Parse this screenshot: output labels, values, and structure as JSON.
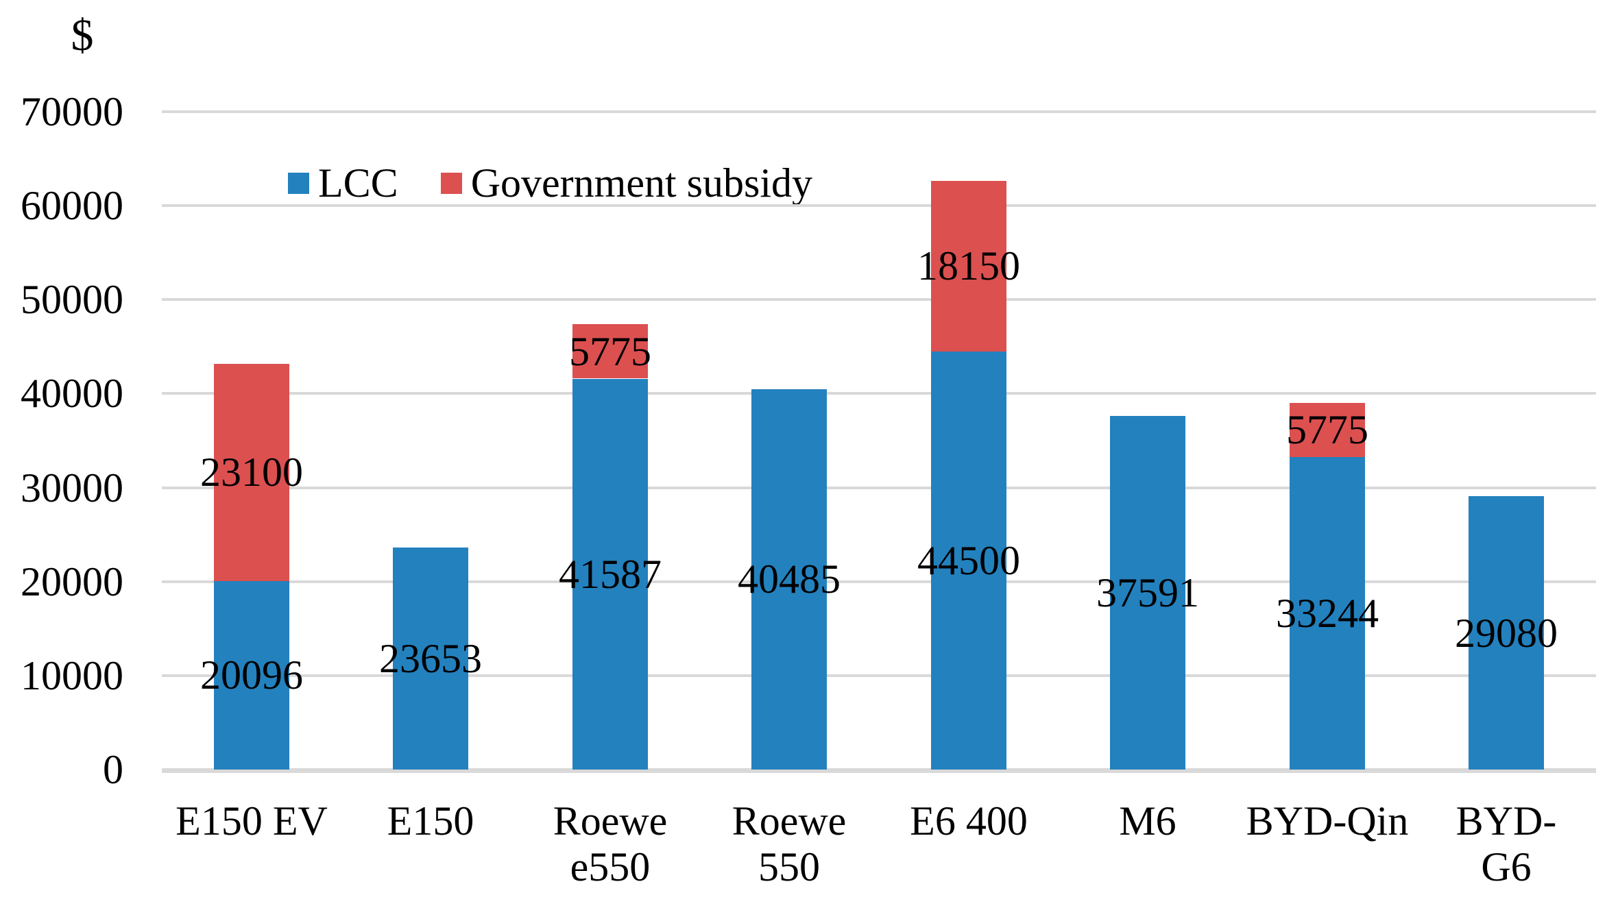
{
  "chart_data": {
    "type": "bar",
    "stacked": true,
    "title": "",
    "ylabel": "$",
    "xlabel": "",
    "ylim": [
      0,
      70000
    ],
    "yticks": [
      0,
      10000,
      20000,
      30000,
      40000,
      50000,
      60000,
      70000
    ],
    "grid": true,
    "grid_color": "#D9D9D9",
    "axis_line_color": "#D9D9D9",
    "text_color": "#000000",
    "legend_position": "top-left-inside",
    "data_labels_position": "center",
    "categories": [
      "E150 EV",
      "E150",
      "Roewe\ne550",
      "Roewe\n550",
      "E6 400",
      "M6",
      "BYD-Qin",
      "BYD-G6"
    ],
    "series": [
      {
        "name": "LCC",
        "color": "#2381BE",
        "values": [
          20096,
          23653,
          41587,
          40485,
          44500,
          37591,
          33244,
          29080
        ]
      },
      {
        "name": "Government subsidy",
        "color": "#DC5050",
        "values": [
          23100,
          0,
          5775,
          0,
          18150,
          0,
          5775,
          0
        ]
      }
    ]
  }
}
